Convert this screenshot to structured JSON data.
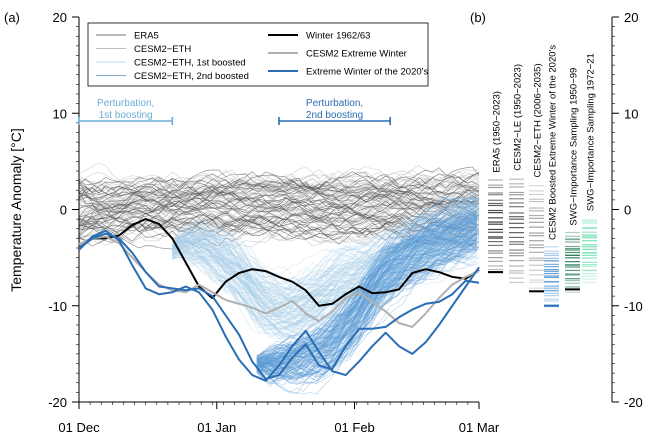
{
  "chart_data": [
    {
      "panel": "(a)",
      "type": "line",
      "ylabel": "Temperature Anomaly [°C]",
      "ylim": [
        -20,
        20
      ],
      "yticks": [
        "20",
        "10",
        "0",
        "-10",
        "-20"
      ],
      "xticks": [
        "01 Dec",
        "01 Jan",
        "01 Feb",
        "01 Mar"
      ],
      "xlim_days": [
        0,
        90
      ],
      "legend": [
        {
          "name": "ERA5",
          "color": "#444444",
          "width": 0.8
        },
        {
          "name": "CESM2−ETH",
          "color": "#aaaaaa",
          "width": 0.8
        },
        {
          "name": "CESM2−ETH, 1st boosted",
          "color": "#a8cfe8",
          "width": 0.8
        },
        {
          "name": "CESM2−ETH, 2nd boosted",
          "color": "#4e8fc4",
          "width": 0.8
        },
        {
          "name": "Winter 1962/63",
          "color": "#000000",
          "width": 2
        },
        {
          "name": "CESM2 Extreme Winter",
          "color": "#b0b0b0",
          "width": 2
        },
        {
          "name": "Extreme Winter of the 2020's",
          "color": "#2a6db5",
          "width": 2
        }
      ],
      "annotations": [
        {
          "text": "Perturbation,\n1st boosting",
          "color": "#6aaed6",
          "x_from": 0,
          "x_to": 21
        },
        {
          "text": "Perturbation,\n2nd boosting",
          "color": "#2a6db5",
          "x_from": 45,
          "x_to": 70
        }
      ],
      "series": [
        {
          "name": "Winter 1962/63",
          "color": "#000000",
          "x": [
            0,
            3,
            6,
            9,
            12,
            15,
            18,
            21,
            24,
            27,
            30,
            33,
            36,
            39,
            42,
            45,
            48,
            51,
            54,
            57,
            60,
            63,
            66,
            69,
            72,
            75,
            78,
            81,
            84,
            87,
            90
          ],
          "y": [
            -4,
            -3,
            -3,
            -2.7,
            -1.6,
            -1,
            -1.5,
            -3,
            -5.5,
            -8,
            -9.2,
            -7.5,
            -6.6,
            -6.2,
            -6.4,
            -7,
            -7.5,
            -8.4,
            -10,
            -9.8,
            -8.8,
            -8,
            -8.7,
            -8.6,
            -8.3,
            -6.6,
            -6.2,
            -6.5,
            -7,
            -7.2,
            -6.3
          ]
        },
        {
          "name": "CESM2 Extreme Winter",
          "color": "#b0b0b0",
          "x": [
            0,
            3,
            6,
            9,
            12,
            15,
            18,
            21,
            24,
            27,
            30,
            33,
            36,
            39,
            42,
            45,
            48,
            51,
            54,
            57,
            60,
            63,
            66,
            69,
            72,
            75,
            78,
            81,
            84,
            87,
            90
          ],
          "y": [
            -3.6,
            -3,
            -2.8,
            -3.5,
            -5,
            -6.5,
            -7.8,
            -8.4,
            -8.6,
            -7.8,
            -8.6,
            -9.4,
            -9.8,
            -10.2,
            -10.8,
            -10.2,
            -9.5,
            -10.8,
            -11.6,
            -10.6,
            -9.2,
            -8.6,
            -9.6,
            -10.6,
            -11.8,
            -12.2,
            -10.8,
            -9.2,
            -7.8,
            -7,
            -6.4
          ]
        },
        {
          "name": "Extreme Winter of the 2020's",
          "color": "#2a6db5",
          "x": [
            0,
            3,
            6,
            9,
            12,
            15,
            18,
            21,
            24,
            27,
            30,
            33,
            36,
            39,
            42,
            45,
            48,
            51,
            54,
            57,
            60,
            63,
            66,
            69,
            72,
            75,
            78,
            81,
            84,
            87,
            90
          ],
          "y": [
            -4,
            -3,
            -2.5,
            -3,
            -4.5,
            -6.5,
            -8,
            -8.2,
            -8.4,
            -8.2,
            -9,
            -11,
            -13,
            -15.8,
            -17.6,
            -17.2,
            -15.4,
            -14,
            -16.2,
            -16.6,
            -14.2,
            -12.4,
            -12.4,
            -12.2,
            -11.2,
            -10.4,
            -9.8,
            -9.6,
            -8.8,
            -7.4,
            -7.6
          ]
        },
        {
          "name": "CESM2−ETH, 2nd boosted (member)",
          "color": "#2a6db5",
          "x": [
            0,
            3,
            6,
            9,
            12,
            15,
            18,
            21,
            24,
            27,
            30,
            33,
            36,
            39,
            42,
            45,
            48,
            51,
            54,
            57,
            60,
            63,
            66,
            69,
            72,
            75,
            78,
            81,
            84,
            87,
            90
          ],
          "y": [
            -4.2,
            -2.8,
            -2.2,
            -3.2,
            -5.8,
            -8.2,
            -8.8,
            -8.6,
            -8,
            -8.6,
            -10.4,
            -13.2,
            -15.6,
            -17.2,
            -17.8,
            -16.2,
            -14.2,
            -12.6,
            -14.8,
            -16.8,
            -17.2,
            -15.8,
            -14.2,
            -12.8,
            -14.2,
            -15,
            -13.8,
            -12,
            -10,
            -8,
            -6
          ]
        }
      ]
    },
    {
      "panel": "(b)",
      "type": "distribution",
      "ylim": [
        -20,
        20
      ],
      "yticks": [
        "20",
        "10",
        "0",
        "-10",
        "-20"
      ],
      "columns": [
        {
          "label": "ERA5 (1950−2023)",
          "color": "#333333",
          "min": -6.5,
          "max": 3,
          "marker": -6.5
        },
        {
          "label": "CESM2−LE (1950−2023)",
          "color": "#555555",
          "min": -7.5,
          "max": 3.2,
          "marker": null
        },
        {
          "label": "CESM2−ETH (2006−2035)",
          "color": "#9a9a9a",
          "min": -8.5,
          "max": 2.5,
          "marker": -8.5
        },
        {
          "label": "CESM2 Boosted Extreme Winter of the 2020's",
          "color": "#5a9bd5",
          "min": -10,
          "max": -4,
          "marker": -10
        },
        {
          "label": "SWG−Importance Sampling 1950−99",
          "color": "#2e7d5b",
          "min": -8.5,
          "max": -2.5,
          "marker": -8.3
        },
        {
          "label": "SWG−Importance Sampling 1972−21",
          "color": "#6fe0b0",
          "min": -7.5,
          "max": -1,
          "marker": null
        }
      ]
    }
  ],
  "panel_tags": {
    "a": "(a)",
    "b": "(b)"
  }
}
